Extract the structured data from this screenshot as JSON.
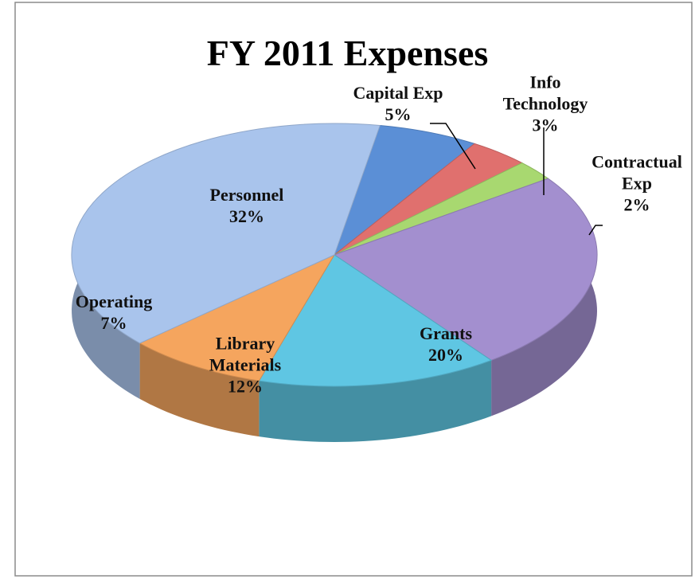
{
  "chart_data": {
    "type": "pie",
    "title": "FY 2011 Expenses",
    "categories": [
      "Capital Exp",
      "Info Technology",
      "Contractual Exp",
      "Grants",
      "Library Materials",
      "Operating",
      "Personnel"
    ],
    "values": [
      5,
      3,
      2,
      20,
      12,
      7,
      32
    ],
    "value_labels": [
      "5%",
      "3%",
      "2%",
      "20%",
      "12%",
      "7%",
      "32%"
    ],
    "colors": [
      "#5b8fd6",
      "#e0706e",
      "#a8d870",
      "#a38fcf",
      "#5fc6e3",
      "#f5a55e",
      "#a9c4ec"
    ]
  }
}
